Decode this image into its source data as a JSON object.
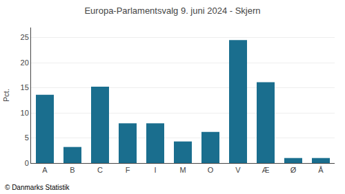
{
  "chart_data": {
    "type": "bar",
    "title": "Europa-Parlamentsvalg 9. juni 2024 - Skjern",
    "categories": [
      "A",
      "B",
      "C",
      "F",
      "I",
      "M",
      "O",
      "V",
      "Æ",
      "Ø",
      "Å"
    ],
    "values": [
      13.6,
      3.2,
      15.2,
      7.9,
      7.9,
      4.3,
      6.2,
      24.5,
      16.1,
      1.0,
      1.0
    ],
    "color": "#1a6e8e",
    "ylabel": "Pct.",
    "ylim": [
      0,
      27
    ],
    "yticks": [
      0,
      5,
      10,
      15,
      20,
      25
    ],
    "grid": true,
    "annotations": [
      "© Danmarks Statistik"
    ]
  }
}
